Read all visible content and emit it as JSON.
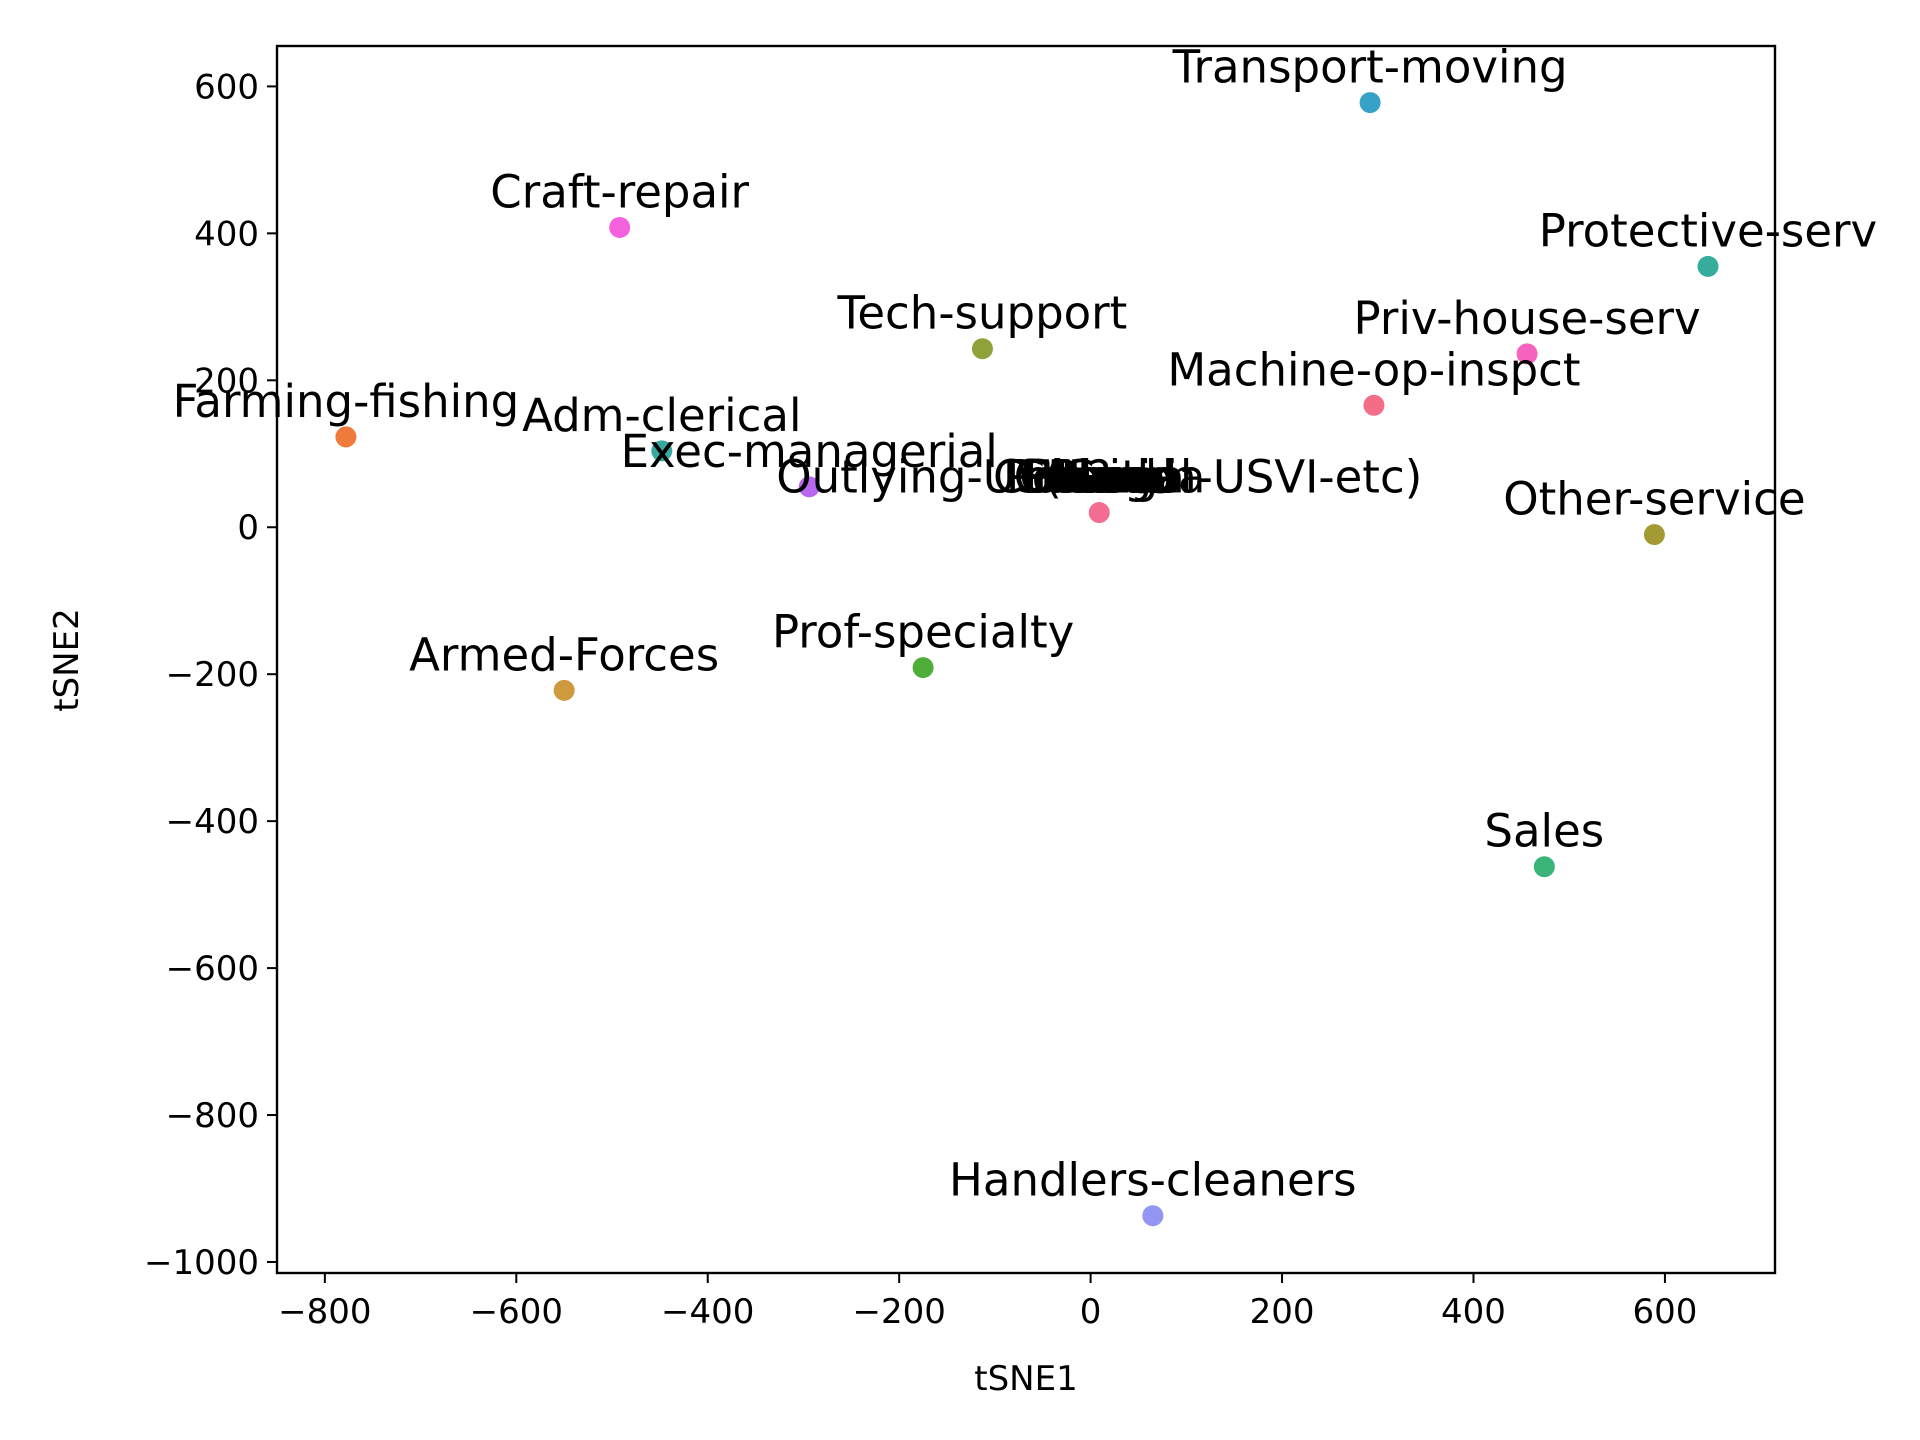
{
  "chart_data": {
    "type": "scatter",
    "title": "",
    "xlabel": "tSNE1",
    "ylabel": "tSNE2",
    "xlim": [
      -850,
      715
    ],
    "ylim": [
      -1015,
      655
    ],
    "xticks": [
      -800,
      -600,
      -400,
      -200,
      0,
      200,
      400,
      600
    ],
    "yticks": [
      -1000,
      -800,
      -600,
      -400,
      -200,
      0,
      200,
      400,
      600
    ],
    "grid": false,
    "legend": "none",
    "points": [
      {
        "label": "Transport-moving",
        "x": 292,
        "y": 578,
        "color": "#36a2c8"
      },
      {
        "label": "Craft-repair",
        "x": -492,
        "y": 408,
        "color": "#f461dd"
      },
      {
        "label": "Protective-serv",
        "x": 645,
        "y": 355,
        "color": "#35ac9c"
      },
      {
        "label": "Tech-support",
        "x": -113,
        "y": 243,
        "color": "#8fa23a"
      },
      {
        "label": "Priv-house-serv",
        "x": 456,
        "y": 236,
        "color": "#f563bf"
      },
      {
        "label": "Machine-op-inspct",
        "x": 296,
        "y": 166,
        "color": "#f26d85"
      },
      {
        "label": "Farming-fishing",
        "x": -778,
        "y": 123,
        "color": "#f07a3c"
      },
      {
        "label": "Adm-clerical",
        "x": -448,
        "y": 104,
        "color": "#38a99e"
      },
      {
        "label": "Exec-managerial",
        "x": -294,
        "y": 55,
        "color": "#b868f0"
      },
      {
        "label": "Outlying-US(Guam-USVI-etc)",
        "x": 9,
        "y": 20,
        "color": "#f26d8f"
      },
      {
        "label": "Other-service",
        "x": 589,
        "y": -10,
        "color": "#a39a33"
      },
      {
        "label": "Prof-specialty",
        "x": -175,
        "y": -191,
        "color": "#4fae3a"
      },
      {
        "label": "Armed-Forces",
        "x": -550,
        "y": -222,
        "color": "#cf9a3d"
      },
      {
        "label": "Sales",
        "x": 474,
        "y": -462,
        "color": "#3bb47a"
      },
      {
        "label": "Handlers-cleaners",
        "x": 65,
        "y": -937,
        "color": "#9295f2"
      }
    ],
    "cluster_labels": [
      "?",
      "Portugal",
      "Canada",
      "Greece",
      "Peru",
      "Columbia",
      "Hong",
      "Poland",
      "Iran",
      "Ireland",
      "Haiti"
    ],
    "cluster_label_near": "Outlying-US(Guam-USVI-etc)"
  }
}
